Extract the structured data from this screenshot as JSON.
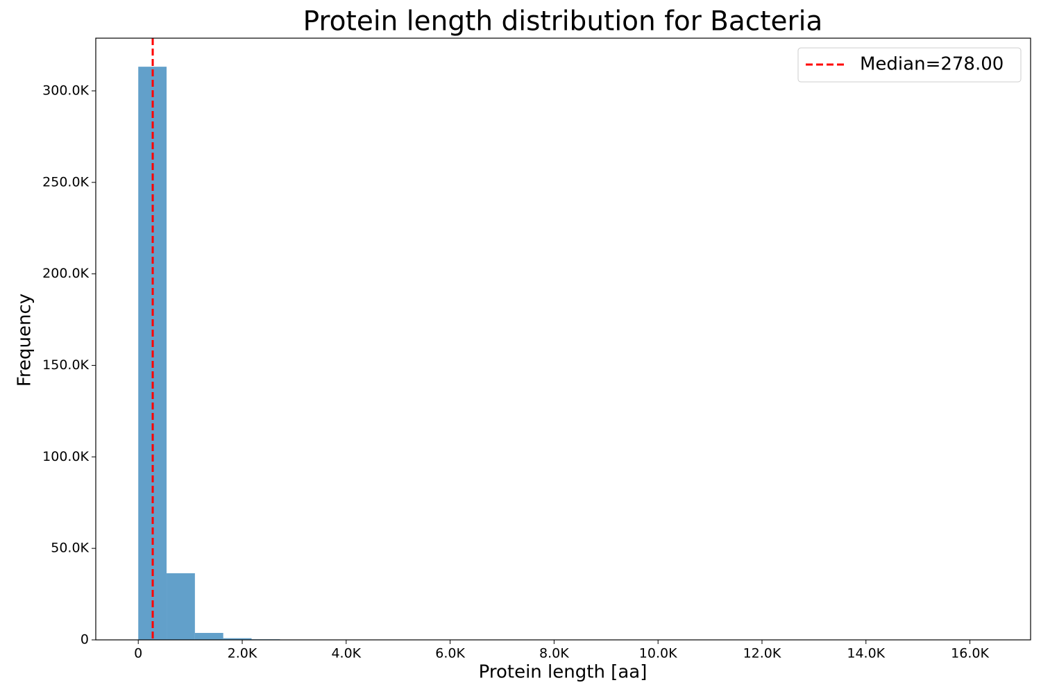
{
  "chart_data": {
    "type": "histogram",
    "title": "Protein length distribution for Bacteria",
    "x_label": "Protein length [aa]",
    "y_label": "Frequency",
    "bins": [
      0,
      545,
      1090,
      1635,
      2180,
      2725,
      3270,
      3815,
      4360,
      4905,
      5450,
      5995,
      6540,
      7085,
      7630,
      8175,
      8720,
      9265,
      9810,
      10355,
      10900,
      11445,
      11990,
      12535,
      13080,
      13625,
      14170,
      14715,
      15260,
      15805,
      16350
    ],
    "counts": [
      313200,
      36400,
      3800,
      900,
      320,
      150,
      80,
      45,
      25,
      15,
      10,
      6,
      4,
      3,
      2,
      2,
      1,
      1,
      1,
      1,
      0,
      0,
      1,
      0,
      0,
      0,
      0,
      0,
      0,
      1
    ],
    "color": "#1f77b4",
    "alpha": 0.7,
    "xlim": [
      -817.5,
      17167.5
    ],
    "xticks": [
      0,
      {
        "value": 2000,
        "label": "2.0K"
      },
      {
        "value": 4000,
        "label": "4.0K"
      },
      {
        "value": 6000,
        "label": "6.0K"
      },
      {
        "value": 8000,
        "label": "8.0K"
      },
      {
        "value": 10000,
        "label": "10.0K"
      },
      {
        "value": 12000,
        "label": "12.0K"
      },
      {
        "value": 14000,
        "label": "14.0K"
      },
      {
        "value": 16000,
        "label": "16.0K"
      }
    ],
    "ylim": [
      0,
      328800
    ],
    "yticks": [
      0,
      {
        "value": 50000,
        "label": "50.0K"
      },
      {
        "value": 100000,
        "label": "100.0K"
      },
      {
        "value": 150000,
        "label": "150.0K"
      },
      {
        "value": 200000,
        "label": "200.0K"
      },
      {
        "value": 250000,
        "label": "250.0K"
      },
      {
        "value": 300000,
        "label": "300.0K"
      }
    ],
    "vlines": [
      {
        "name": "Median=278.00",
        "value": 278,
        "color": "#ff0000"
      }
    ],
    "legend": "upper right",
    "grid": false
  }
}
